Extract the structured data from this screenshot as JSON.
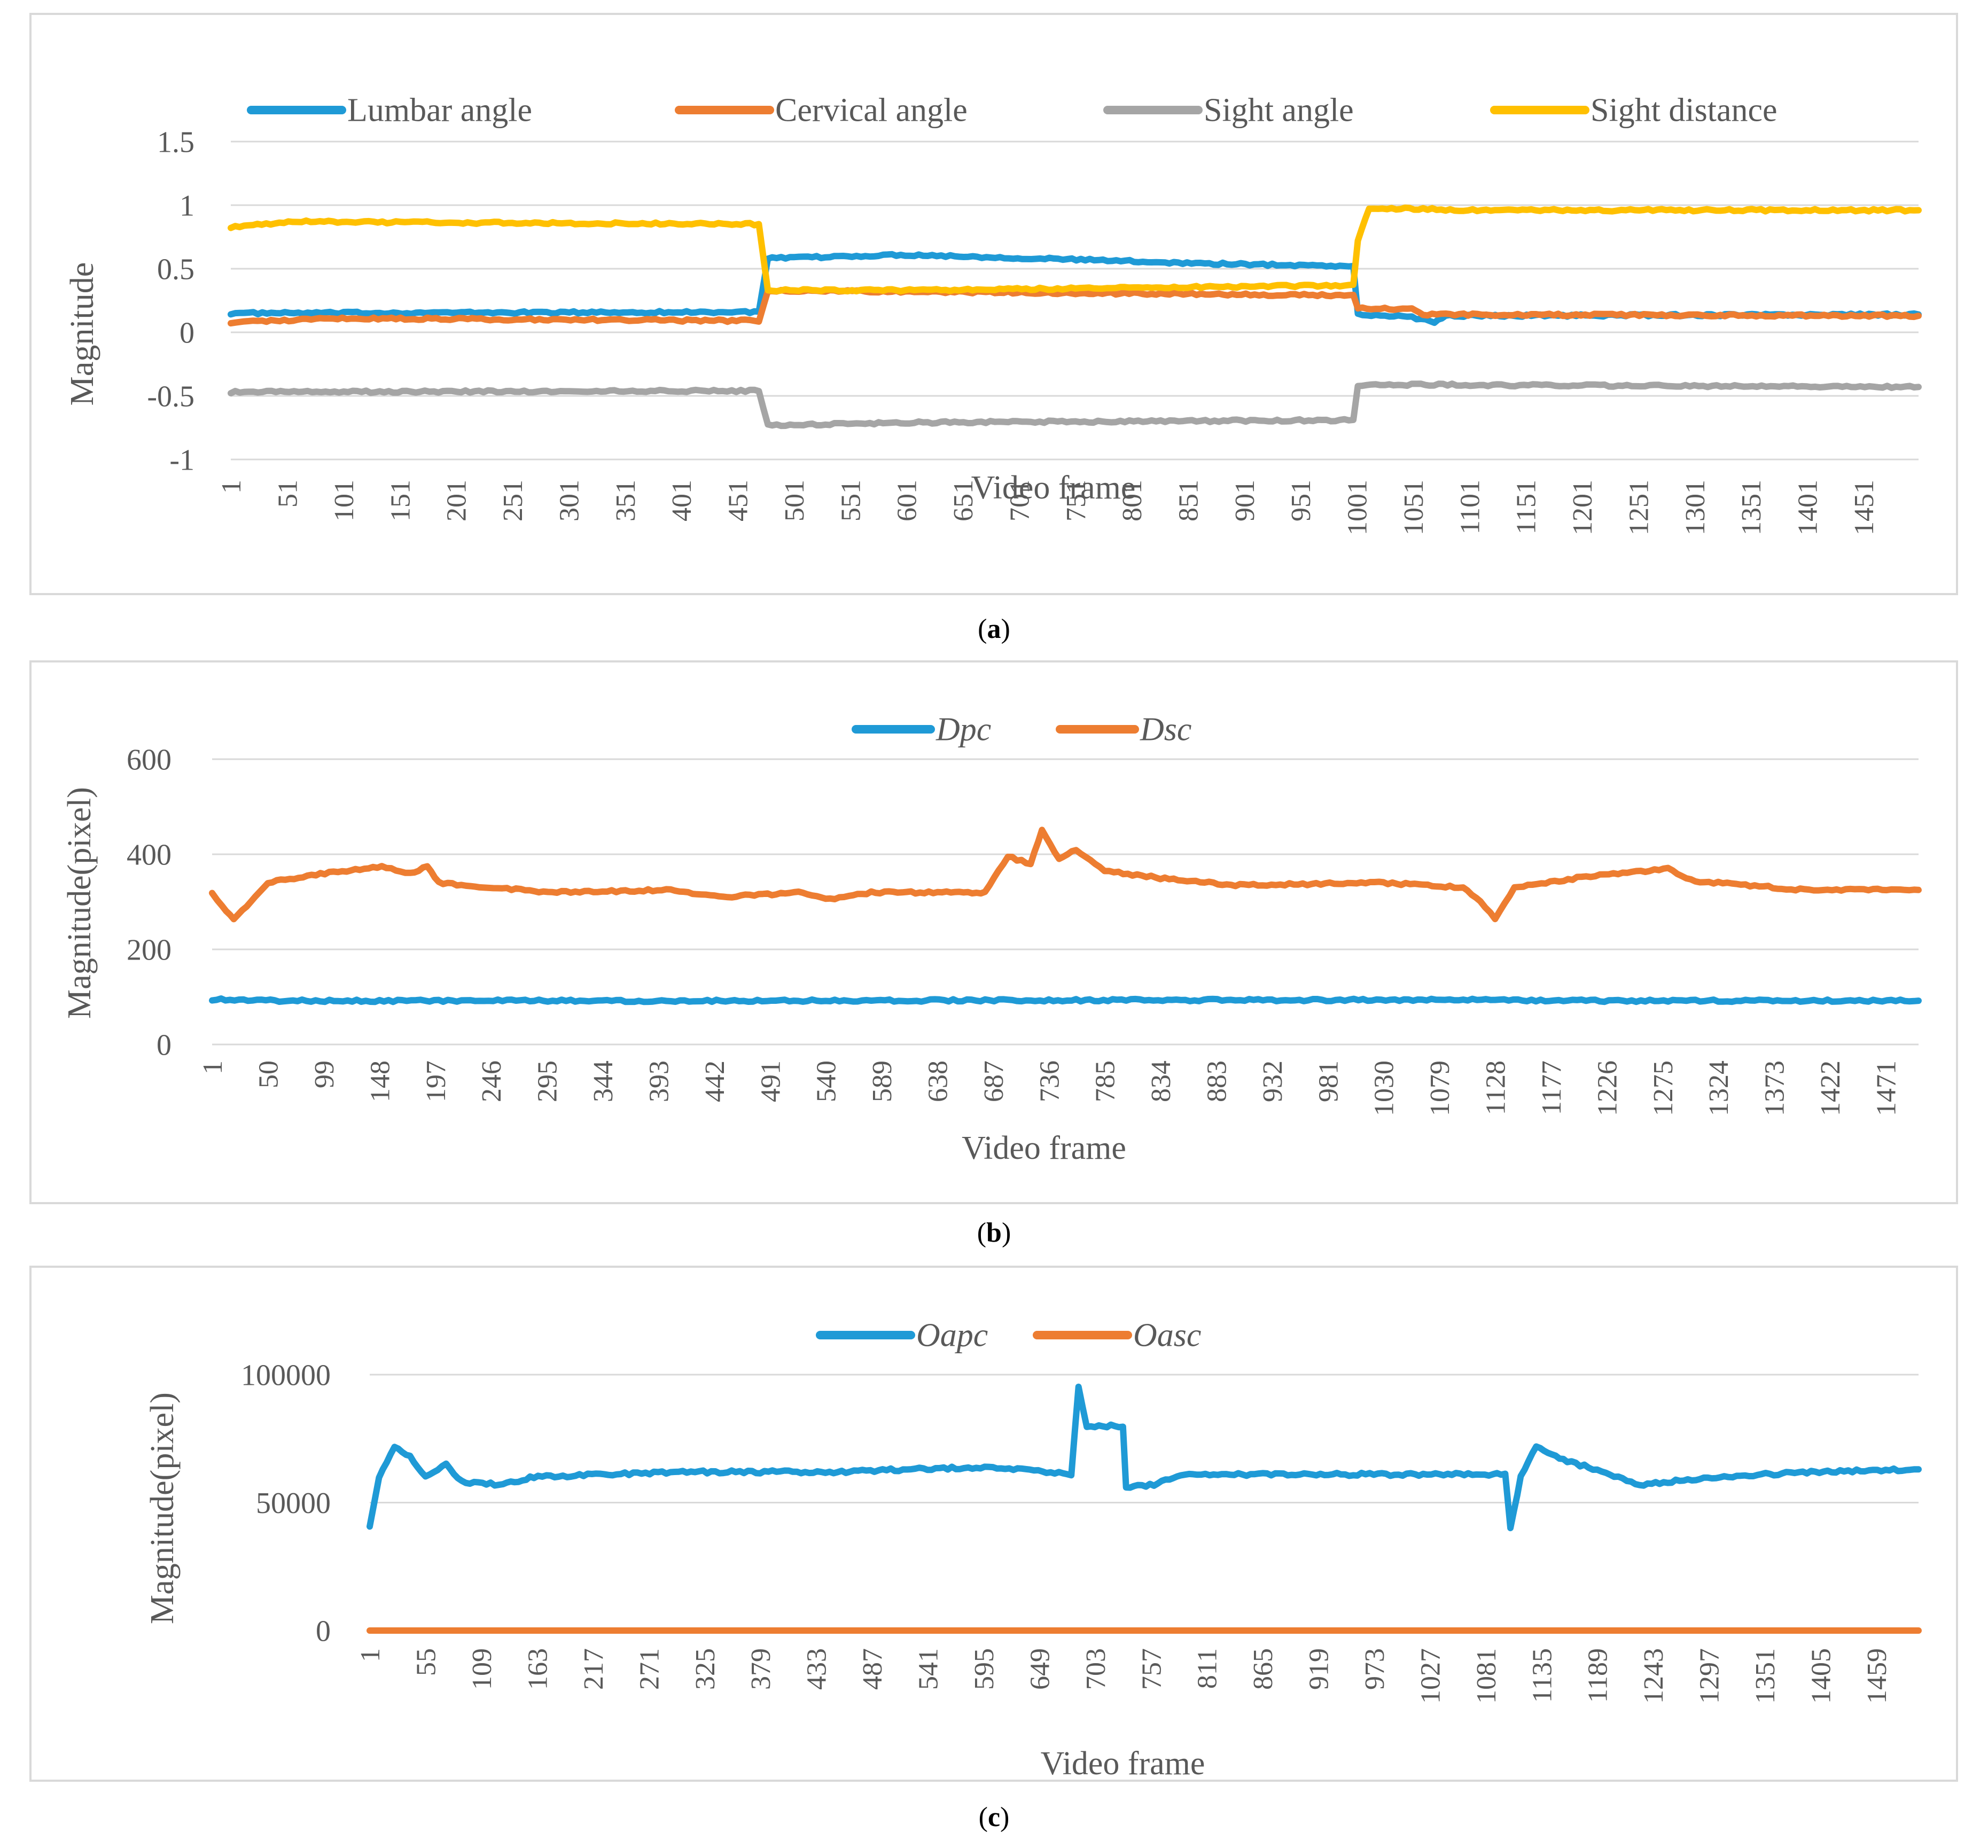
{
  "captions": {
    "a": {
      "open": "(",
      "letter": "a",
      "close": ")"
    },
    "b": {
      "open": "(",
      "letter": "b",
      "close": ")"
    },
    "c": {
      "open": "(",
      "letter": "c",
      "close": ")"
    }
  },
  "chart_data": [
    {
      "id": "a",
      "type": "line",
      "title": "",
      "xlabel": "Video frame",
      "ylabel": "Magnitude",
      "ylim": [
        -1,
        1.5
      ],
      "yticks": [
        1.5,
        1,
        0.5,
        0,
        -0.5,
        -1
      ],
      "ytick_labels": [
        "1.5",
        "1",
        "0.5",
        "0",
        "-0.5",
        "-1"
      ],
      "grid": true,
      "legend": "top",
      "xlim": [
        1,
        1500
      ],
      "x_tick_labels": [
        "1",
        "51",
        "101",
        "151",
        "201",
        "251",
        "301",
        "351",
        "401",
        "451",
        "501",
        "551",
        "601",
        "651",
        "701",
        "751",
        "801",
        "851",
        "901",
        "951",
        "1001",
        "1051",
        "1101",
        "1151",
        "1201",
        "1251",
        "1301",
        "1351",
        "1401",
        "1451"
      ],
      "series": [
        {
          "name": "Lumbar angle",
          "color": "#1f9ad6",
          "segments": [
            [
              1,
              0.15
            ],
            [
              470,
              0.16
            ],
            [
              478,
              0.58
            ],
            [
              600,
              0.61
            ],
            [
              760,
              0.57
            ],
            [
              870,
              0.54
            ],
            [
              998,
              0.52
            ],
            [
              1002,
              0.14
            ],
            [
              1050,
              0.12
            ],
            [
              1070,
              0.08
            ],
            [
              1080,
              0.13
            ],
            [
              1500,
              0.14
            ]
          ]
        },
        {
          "name": "Cervical angle",
          "color": "#ed7d31",
          "segments": [
            [
              1,
              0.08
            ],
            [
              100,
              0.11
            ],
            [
              470,
              0.09
            ],
            [
              478,
              0.33
            ],
            [
              600,
              0.32
            ],
            [
              998,
              0.29
            ],
            [
              1002,
              0.19
            ],
            [
              1050,
              0.18
            ],
            [
              1060,
              0.14
            ],
            [
              1500,
              0.13
            ]
          ]
        },
        {
          "name": "Sight angle",
          "color": "#a5a5a5",
          "segments": [
            [
              1,
              -0.47
            ],
            [
              470,
              -0.46
            ],
            [
              478,
              -0.73
            ],
            [
              600,
              -0.71
            ],
            [
              998,
              -0.69
            ],
            [
              1002,
              -0.43
            ],
            [
              1010,
              -0.41
            ],
            [
              1500,
              -0.43
            ]
          ]
        },
        {
          "name": "Sight distance",
          "color": "#ffc000",
          "segments": [
            [
              1,
              0.83
            ],
            [
              60,
              0.87
            ],
            [
              470,
              0.85
            ],
            [
              478,
              0.33
            ],
            [
              600,
              0.33
            ],
            [
              998,
              0.37
            ],
            [
              1002,
              0.72
            ],
            [
              1012,
              0.98
            ],
            [
              1100,
              0.96
            ],
            [
              1500,
              0.96
            ]
          ]
        }
      ]
    },
    {
      "id": "b",
      "type": "line",
      "title": "",
      "xlabel": "Video frame",
      "ylabel": "Magnitude(pixel)",
      "ylim": [
        0,
        600
      ],
      "yticks": [
        600,
        400,
        200,
        0
      ],
      "ytick_labels": [
        "600",
        "400",
        "200",
        "0"
      ],
      "grid": true,
      "legend": "top",
      "xlim": [
        1,
        1500
      ],
      "x_tick_labels": [
        "1",
        "50",
        "99",
        "148",
        "197",
        "246",
        "295",
        "344",
        "393",
        "442",
        "491",
        "540",
        "589",
        "638",
        "687",
        "736",
        "785",
        "834",
        "883",
        "932",
        "981",
        "1030",
        "1079",
        "1128",
        "1177",
        "1226",
        "1275",
        "1324",
        "1373",
        "1422",
        "1471"
      ],
      "series": [
        {
          "name": "Dpc",
          "color": "#1f9ad6",
          "segments": [
            [
              1,
              95
            ],
            [
              60,
              92
            ],
            [
              400,
              92
            ],
            [
              1128,
              94
            ],
            [
              1200,
              92
            ],
            [
              1500,
              92
            ]
          ]
        },
        {
          "name": "Dsc",
          "color": "#ed7d31",
          "segments": [
            [
              1,
              320
            ],
            [
              10,
              290
            ],
            [
              20,
              265
            ],
            [
              35,
              300
            ],
            [
              50,
              340
            ],
            [
              100,
              360
            ],
            [
              150,
              375
            ],
            [
              175,
              360
            ],
            [
              190,
              375
            ],
            [
              200,
              340
            ],
            [
              300,
              320
            ],
            [
              400,
              325
            ],
            [
              450,
              310
            ],
            [
              520,
              320
            ],
            [
              540,
              305
            ],
            [
              580,
              320
            ],
            [
              650,
              320
            ],
            [
              680,
              320
            ],
            [
              700,
              395
            ],
            [
              720,
              380
            ],
            [
              730,
              450
            ],
            [
              745,
              390
            ],
            [
              760,
              410
            ],
            [
              785,
              365
            ],
            [
              834,
              350
            ],
            [
              900,
              335
            ],
            [
              1030,
              340
            ],
            [
              1100,
              330
            ],
            [
              1115,
              300
            ],
            [
              1128,
              265
            ],
            [
              1145,
              330
            ],
            [
              1200,
              350
            ],
            [
              1280,
              370
            ],
            [
              1300,
              345
            ],
            [
              1400,
              325
            ],
            [
              1500,
              325
            ]
          ]
        }
      ]
    },
    {
      "id": "c",
      "type": "line",
      "title": "",
      "xlabel": "Video frame",
      "ylabel": "Magnitude(pixel)",
      "ylim": [
        0,
        100000
      ],
      "yticks": [
        100000,
        50000,
        0
      ],
      "ytick_labels": [
        "100000",
        "50000",
        "0"
      ],
      "grid": true,
      "legend": "top",
      "xlim": [
        1,
        1500
      ],
      "x_tick_labels": [
        "1",
        "55",
        "109",
        "163",
        "217",
        "271",
        "325",
        "379",
        "433",
        "487",
        "541",
        "595",
        "649",
        "703",
        "757",
        "811",
        "865",
        "919",
        "973",
        "1027",
        "1081",
        "1135",
        "1189",
        "1243",
        "1297",
        "1351",
        "1405",
        "1459"
      ],
      "series": [
        {
          "name": "Oapc",
          "color": "#1f9ad6",
          "segments": [
            [
              1,
              41000
            ],
            [
              10,
              60000
            ],
            [
              25,
              72000
            ],
            [
              40,
              68000
            ],
            [
              55,
              60000
            ],
            [
              75,
              65000
            ],
            [
              90,
              58000
            ],
            [
              130,
              57000
            ],
            [
              160,
              60000
            ],
            [
              300,
              62000
            ],
            [
              450,
              62000
            ],
            [
              600,
              64000
            ],
            [
              680,
              61000
            ],
            [
              687,
              95000
            ],
            [
              695,
              80000
            ],
            [
              730,
              80000
            ],
            [
              733,
              56000
            ],
            [
              760,
              57000
            ],
            [
              790,
              61000
            ],
            [
              1100,
              61000
            ],
            [
              1105,
              40000
            ],
            [
              1115,
              60000
            ],
            [
              1130,
              72000
            ],
            [
              1160,
              66000
            ],
            [
              1189,
              63000
            ],
            [
              1230,
              57000
            ],
            [
              1300,
              60000
            ],
            [
              1400,
              62000
            ],
            [
              1500,
              63000
            ]
          ]
        },
        {
          "name": "Oasc",
          "color": "#ed7d31",
          "segments": [
            [
              1,
              0
            ],
            [
              1500,
              0
            ]
          ]
        }
      ]
    }
  ]
}
